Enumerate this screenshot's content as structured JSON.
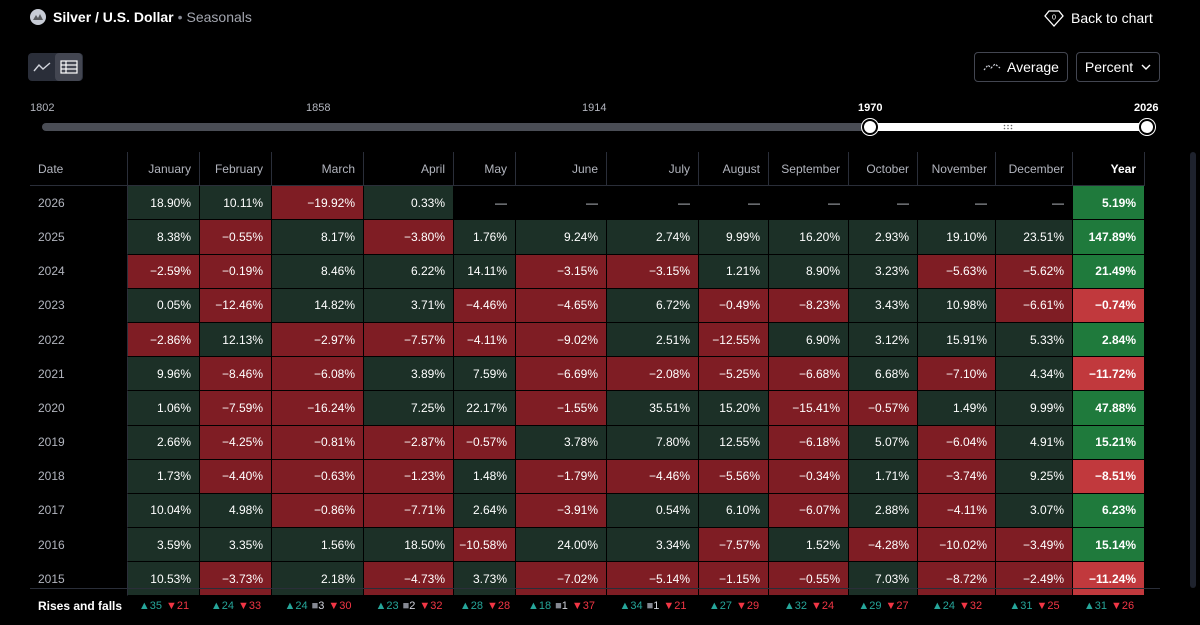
{
  "header": {
    "symbol": "Silver / U.S. Dollar",
    "separator": "•",
    "section": "Seasonals",
    "back_label": "Back to chart"
  },
  "controls": {
    "view_modes": [
      "chart",
      "table"
    ],
    "active_view": "table",
    "average_label": "Average",
    "unit_label": "Percent"
  },
  "timeline": {
    "labels": [
      "1802",
      "1858",
      "1914",
      "1970",
      "2026"
    ],
    "selected_start": "1970",
    "selected_end": "2026"
  },
  "table": {
    "columns": [
      "Date",
      "January",
      "February",
      "March",
      "April",
      "May",
      "June",
      "July",
      "August",
      "September",
      "October",
      "November",
      "December",
      "Year"
    ],
    "rows": [
      {
        "date": "2026",
        "values": [
          "18.90%",
          "10.11%",
          "−19.92%",
          "0.33%",
          "—",
          "—",
          "—",
          "—",
          "—",
          "—",
          "—",
          "—"
        ],
        "year": "5.19%"
      },
      {
        "date": "2025",
        "values": [
          "8.38%",
          "−0.55%",
          "8.17%",
          "−3.80%",
          "1.76%",
          "9.24%",
          "2.74%",
          "9.99%",
          "16.20%",
          "2.93%",
          "19.10%",
          "23.51%"
        ],
        "year": "147.89%"
      },
      {
        "date": "2024",
        "values": [
          "−2.59%",
          "−0.19%",
          "8.46%",
          "6.22%",
          "14.11%",
          "−3.15%",
          "−3.15%",
          "1.21%",
          "8.90%",
          "3.23%",
          "−5.63%",
          "−5.62%"
        ],
        "year": "21.49%"
      },
      {
        "date": "2023",
        "values": [
          "0.05%",
          "−12.46%",
          "14.82%",
          "3.71%",
          "−4.46%",
          "−4.65%",
          "6.72%",
          "−0.49%",
          "−8.23%",
          "3.43%",
          "10.98%",
          "−6.61%"
        ],
        "year": "−0.74%"
      },
      {
        "date": "2022",
        "values": [
          "−2.86%",
          "12.13%",
          "−2.97%",
          "−7.57%",
          "−4.11%",
          "−9.02%",
          "2.51%",
          "−12.55%",
          "6.90%",
          "3.12%",
          "15.91%",
          "5.33%"
        ],
        "year": "2.84%"
      },
      {
        "date": "2021",
        "values": [
          "9.96%",
          "−8.46%",
          "−6.08%",
          "3.89%",
          "7.59%",
          "−6.69%",
          "−2.08%",
          "−5.25%",
          "−6.68%",
          "6.68%",
          "−7.10%",
          "4.34%"
        ],
        "year": "−11.72%"
      },
      {
        "date": "2020",
        "values": [
          "1.06%",
          "−7.59%",
          "−16.24%",
          "7.25%",
          "22.17%",
          "−1.55%",
          "35.51%",
          "15.20%",
          "−15.41%",
          "−0.57%",
          "1.49%",
          "9.99%"
        ],
        "year": "47.88%"
      },
      {
        "date": "2019",
        "values": [
          "2.66%",
          "−4.25%",
          "−0.81%",
          "−2.87%",
          "−0.57%",
          "3.78%",
          "7.80%",
          "12.55%",
          "−6.18%",
          "5.07%",
          "−6.04%",
          "4.91%"
        ],
        "year": "15.21%"
      },
      {
        "date": "2018",
        "values": [
          "1.73%",
          "−4.40%",
          "−0.63%",
          "−1.23%",
          "1.48%",
          "−1.79%",
          "−4.46%",
          "−5.56%",
          "−0.34%",
          "1.71%",
          "−3.74%",
          "9.25%"
        ],
        "year": "−8.51%"
      },
      {
        "date": "2017",
        "values": [
          "10.04%",
          "4.98%",
          "−0.86%",
          "−7.71%",
          "2.64%",
          "−3.91%",
          "0.54%",
          "6.10%",
          "−6.07%",
          "2.88%",
          "−4.11%",
          "3.07%"
        ],
        "year": "6.23%"
      },
      {
        "date": "2016",
        "values": [
          "3.59%",
          "3.35%",
          "1.56%",
          "18.50%",
          "−10.58%",
          "24.00%",
          "3.34%",
          "−7.57%",
          "1.52%",
          "−4.28%",
          "−10.02%",
          "−3.49%"
        ],
        "year": "15.14%"
      },
      {
        "date": "2015",
        "values": [
          "10.53%",
          "−3.73%",
          "2.18%",
          "−4.73%",
          "3.73%",
          "−7.02%",
          "−5.14%",
          "−1.15%",
          "−0.55%",
          "7.03%",
          "−8.72%",
          "−2.49%"
        ],
        "year": "−11.24%"
      }
    ],
    "footer": {
      "label": "Rises and falls",
      "cells": [
        {
          "up": "35",
          "flat": "",
          "down": "21"
        },
        {
          "up": "24",
          "flat": "",
          "down": "33"
        },
        {
          "up": "24",
          "flat": "3",
          "down": "30"
        },
        {
          "up": "23",
          "flat": "2",
          "down": "32"
        },
        {
          "up": "28",
          "flat": "",
          "down": "28"
        },
        {
          "up": "18",
          "flat": "1",
          "down": "37"
        },
        {
          "up": "34",
          "flat": "1",
          "down": "21"
        },
        {
          "up": "27",
          "flat": "",
          "down": "29"
        },
        {
          "up": "32",
          "flat": "",
          "down": "24"
        },
        {
          "up": "29",
          "flat": "",
          "down": "27"
        },
        {
          "up": "24",
          "flat": "",
          "down": "32"
        },
        {
          "up": "31",
          "flat": "",
          "down": "25"
        },
        {
          "up": "31",
          "flat": "",
          "down": "26"
        }
      ]
    }
  },
  "colors": {
    "positive_cell": "#1c3027",
    "negative_cell": "#7f1d24",
    "year_positive": "#1f7a3c",
    "year_negative": "#c1393d",
    "rise": "#26a69a",
    "fall": "#f23645"
  }
}
